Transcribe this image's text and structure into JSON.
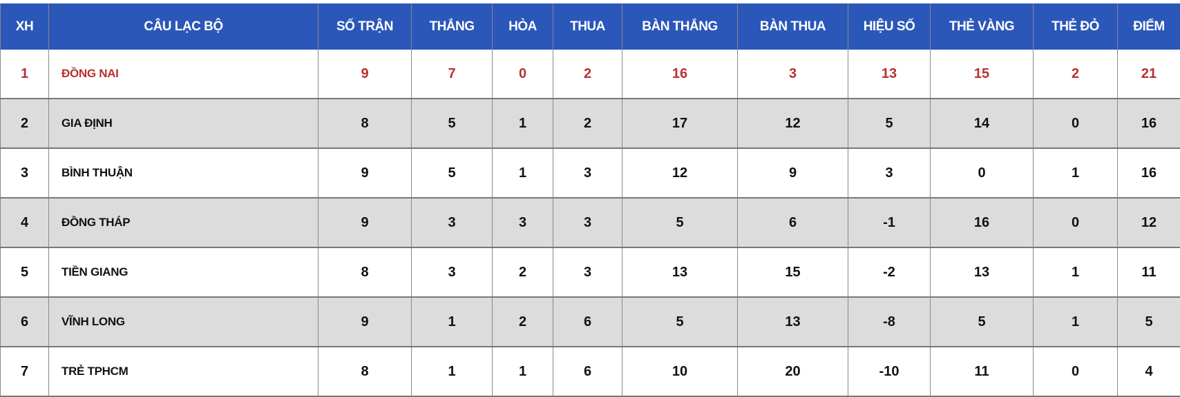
{
  "colors": {
    "header_bg": "#2b57b9",
    "leader_text": "#b8312f",
    "alt_row": "#dcdcdc"
  },
  "headers": [
    "XH",
    "CÂU LẠC BỘ",
    "SỐ TRẬN",
    "THẮNG",
    "HÒA",
    "THUA",
    "BÀN THẮNG",
    "BÀN THUA",
    "HIỆU SỐ",
    "THẺ VÀNG",
    "THẺ ĐỎ",
    "ĐIỂM"
  ],
  "rows": [
    [
      "1",
      "ĐỒNG NAI",
      "9",
      "7",
      "0",
      "2",
      "16",
      "3",
      "13",
      "15",
      "2",
      "21"
    ],
    [
      "2",
      "GIA ĐỊNH",
      "8",
      "5",
      "1",
      "2",
      "17",
      "12",
      "5",
      "14",
      "0",
      "16"
    ],
    [
      "3",
      "BÌNH THUẬN",
      "9",
      "5",
      "1",
      "3",
      "12",
      "9",
      "3",
      "0",
      "1",
      "16"
    ],
    [
      "4",
      "ĐỒNG THÁP",
      "9",
      "3",
      "3",
      "3",
      "5",
      "6",
      "-1",
      "16",
      "0",
      "12"
    ],
    [
      "5",
      "TIỀN GIANG",
      "8",
      "3",
      "2",
      "3",
      "13",
      "15",
      "-2",
      "13",
      "1",
      "11"
    ],
    [
      "6",
      "VĨNH LONG",
      "9",
      "1",
      "2",
      "6",
      "5",
      "13",
      "-8",
      "5",
      "1",
      "5"
    ],
    [
      "7",
      "TRẺ TPHCM",
      "8",
      "1",
      "1",
      "6",
      "10",
      "20",
      "-10",
      "11",
      "0",
      "4"
    ]
  ]
}
